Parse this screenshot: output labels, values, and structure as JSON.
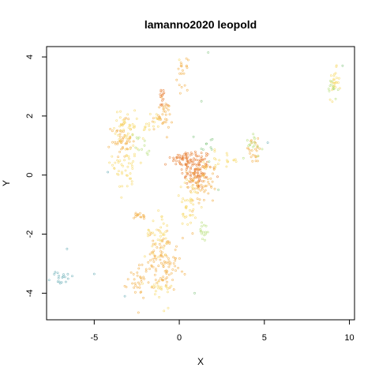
{
  "chart_data": {
    "type": "scatter",
    "title": "lamanno2020 leopold",
    "xlabel": "X",
    "ylabel": "Y",
    "xlim": [
      -7.8,
      10.3
    ],
    "ylim": [
      -4.9,
      4.35
    ],
    "xticks": [
      -5,
      0,
      5,
      10
    ],
    "xtick_labels": [
      "-5",
      "0",
      "5",
      "10"
    ],
    "yticks": [
      -4,
      -2,
      0,
      2,
      4
    ],
    "ytick_labels": [
      "-4",
      "-2",
      "0",
      "2",
      "4"
    ],
    "grid": false,
    "legend": "none",
    "point_colors": {
      "orange": "#e8823a",
      "amber": "#f2b04a",
      "yellow": "#f7d96a",
      "lightgreen": "#b9df7e",
      "green": "#8cc98a",
      "teal": "#6fb0b8"
    },
    "clusters": [
      {
        "color": "orange",
        "x": 1.0,
        "y": 0.2,
        "sx": 0.45,
        "sy": 0.35,
        "n": 120
      },
      {
        "color": "orange",
        "x": 0.2,
        "y": 0.55,
        "sx": 0.35,
        "sy": 0.15,
        "n": 40
      },
      {
        "color": "amber",
        "x": 1.4,
        "y": -0.3,
        "sx": 0.4,
        "sy": 0.4,
        "n": 60
      },
      {
        "color": "amber",
        "x": -3.4,
        "y": 1.2,
        "sx": 0.3,
        "sy": 0.3,
        "n": 50
      },
      {
        "color": "yellow",
        "x": -3.1,
        "y": 0.4,
        "sx": 0.4,
        "sy": 0.5,
        "n": 50
      },
      {
        "color": "yellow",
        "x": -3.2,
        "y": 1.7,
        "sx": 0.3,
        "sy": 0.25,
        "n": 30
      },
      {
        "color": "lightgreen",
        "x": -2.3,
        "y": 1.0,
        "sx": 0.3,
        "sy": 0.25,
        "n": 12
      },
      {
        "color": "amber",
        "x": -1.0,
        "y": 2.0,
        "sx": 0.3,
        "sy": 0.25,
        "n": 35
      },
      {
        "color": "orange",
        "x": -1.0,
        "y": 2.6,
        "sx": 0.1,
        "sy": 0.2,
        "n": 15
      },
      {
        "color": "yellow",
        "x": -1.8,
        "y": 1.7,
        "sx": 0.4,
        "sy": 0.2,
        "n": 20
      },
      {
        "color": "amber",
        "x": 0.2,
        "y": 3.4,
        "sx": 0.15,
        "sy": 0.25,
        "n": 20
      },
      {
        "color": "yellow",
        "x": 0.6,
        "y": -1.0,
        "sx": 0.4,
        "sy": 0.4,
        "n": 40
      },
      {
        "color": "amber",
        "x": -2.3,
        "y": -1.4,
        "sx": 0.25,
        "sy": 0.08,
        "n": 15
      },
      {
        "color": "amber",
        "x": -1.0,
        "y": -2.6,
        "sx": 0.4,
        "sy": 0.35,
        "n": 55
      },
      {
        "color": "yellow",
        "x": -1.3,
        "y": -2.0,
        "sx": 0.35,
        "sy": 0.4,
        "n": 35
      },
      {
        "color": "amber",
        "x": -2.2,
        "y": -3.5,
        "sx": 0.4,
        "sy": 0.3,
        "n": 40
      },
      {
        "color": "amber",
        "x": -0.7,
        "y": -3.3,
        "sx": 0.35,
        "sy": 0.3,
        "n": 40
      },
      {
        "color": "yellow",
        "x": -1.2,
        "y": -3.9,
        "sx": 0.4,
        "sy": 0.2,
        "n": 20
      },
      {
        "color": "lightgreen",
        "x": 1.4,
        "y": -1.9,
        "sx": 0.2,
        "sy": 0.2,
        "n": 15
      },
      {
        "color": "amber",
        "x": 4.4,
        "y": 0.8,
        "sx": 0.3,
        "sy": 0.2,
        "n": 25
      },
      {
        "color": "lightgreen",
        "x": 4.3,
        "y": 1.1,
        "sx": 0.3,
        "sy": 0.25,
        "n": 15
      },
      {
        "color": "yellow",
        "x": 2.6,
        "y": 0.5,
        "sx": 0.5,
        "sy": 0.15,
        "n": 20
      },
      {
        "color": "yellow",
        "x": 9.1,
        "y": 3.1,
        "sx": 0.15,
        "sy": 0.25,
        "n": 25
      },
      {
        "color": "lightgreen",
        "x": 9.0,
        "y": 2.9,
        "sx": 0.15,
        "sy": 0.2,
        "n": 12
      },
      {
        "color": "teal",
        "x": -6.9,
        "y": -3.5,
        "sx": 0.35,
        "sy": 0.12,
        "n": 18
      },
      {
        "color": "green",
        "x": 1.6,
        "y": 1.0,
        "sx": 0.3,
        "sy": 0.3,
        "n": 10
      }
    ],
    "outliers": [
      {
        "x": 1.7,
        "y": 4.15,
        "color": "green"
      },
      {
        "x": 0.0,
        "y": 3.9,
        "color": "yellow"
      },
      {
        "x": 1.3,
        "y": 2.5,
        "color": "green"
      },
      {
        "x": -4.2,
        "y": 0.1,
        "color": "teal"
      },
      {
        "x": -6.6,
        "y": -2.5,
        "color": "teal"
      },
      {
        "x": -5.0,
        "y": -3.35,
        "color": "teal"
      },
      {
        "x": 0.9,
        "y": -4.0,
        "color": "green"
      },
      {
        "x": -0.9,
        "y": -4.6,
        "color": "yellow"
      },
      {
        "x": -3.2,
        "y": -4.1,
        "color": "teal"
      },
      {
        "x": 5.2,
        "y": 1.1,
        "color": "teal"
      },
      {
        "x": 9.6,
        "y": 3.7,
        "color": "green"
      },
      {
        "x": 2.3,
        "y": -0.5,
        "color": "green"
      }
    ]
  }
}
